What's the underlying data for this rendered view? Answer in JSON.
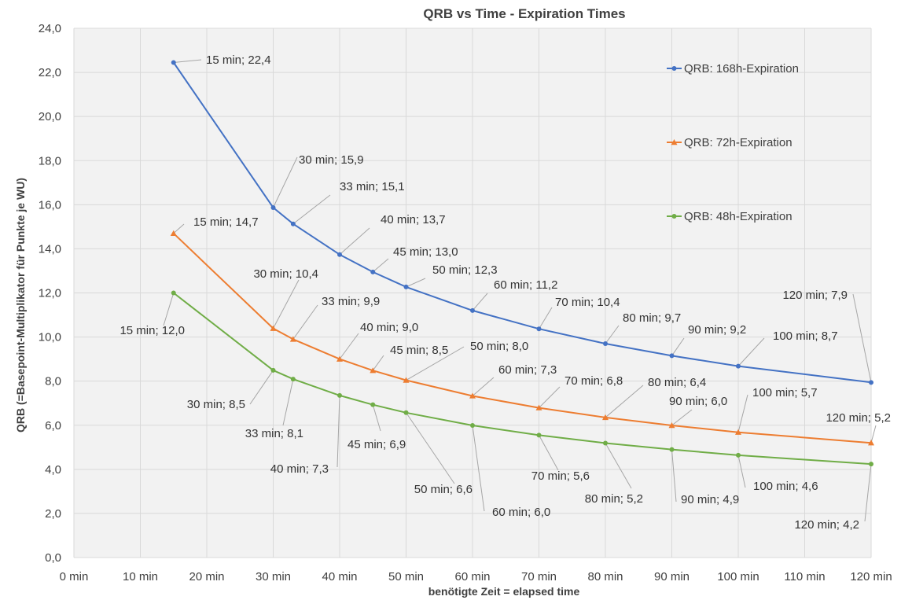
{
  "chart_data": {
    "type": "line",
    "title": "QRB vs Time - Expiration Times",
    "xlabel": "benötigte Zeit = elapsed time",
    "ylabel": "QRB (=Basepoint-Multiplikator für Punkte je WU)",
    "xlim": [
      0,
      120
    ],
    "ylim": [
      0,
      24
    ],
    "grid": true,
    "legend_position": "right",
    "x_ticks": [
      "0 min",
      "10 min",
      "20 min",
      "30 min",
      "40 min",
      "50 min",
      "60 min",
      "70 min",
      "80 min",
      "90 min",
      "100 min",
      "110 min",
      "120 min"
    ],
    "y_ticks": [
      "0,0",
      "2,0",
      "4,0",
      "6,0",
      "8,0",
      "10,0",
      "12,0",
      "14,0",
      "16,0",
      "18,0",
      "20,0",
      "22,0",
      "24,0"
    ],
    "x": [
      15,
      30,
      33,
      40,
      45,
      50,
      60,
      70,
      80,
      90,
      100,
      120
    ],
    "series": [
      {
        "name": "QRB: 168h-Expiration",
        "color": "#4472c4",
        "marker": "circle",
        "values": [
          22.45,
          15.87,
          15.13,
          13.74,
          12.95,
          12.27,
          11.2,
          10.37,
          9.7,
          9.15,
          8.68,
          7.94
        ],
        "labels": [
          "15 min; 22,4",
          "30 min; 15,9",
          "33 min; 15,1",
          "40 min; 13,7",
          "45 min; 13,0",
          "50 min; 12,3",
          "60 min; 11,2",
          "70 min; 10,4",
          "80 min; 9,7",
          "90 min; 9,2",
          "100 min; 8,7",
          "120 min; 7,9"
        ]
      },
      {
        "name": "QRB: 72h-Expiration",
        "color": "#ed7d31",
        "marker": "triangle",
        "values": [
          14.7,
          10.39,
          9.9,
          9.0,
          8.48,
          8.04,
          7.33,
          6.79,
          6.35,
          5.99,
          5.68,
          5.2
        ],
        "labels": [
          "15 min; 14,7",
          "30 min; 10,4",
          "33 min; 9,9",
          "40 min; 9,0",
          "45 min; 8,5",
          "50 min; 8,0",
          "60 min; 7,3",
          "70 min; 6,8",
          "80 min; 6,4",
          "90 min; 6,0",
          "100 min; 5,7",
          "120 min; 5,2"
        ]
      },
      {
        "name": "QRB: 48h-Expiration",
        "color": "#70ad47",
        "marker": "circle",
        "values": [
          12.0,
          8.49,
          8.09,
          7.35,
          6.93,
          6.57,
          5.99,
          5.55,
          5.19,
          4.9,
          4.64,
          4.24
        ],
        "labels": [
          "15 min; 12,0",
          "30 min; 8,5",
          "33 min; 8,1",
          "40 min; 7,3",
          "45 min; 6,9",
          "50 min; 6,6",
          "60 min; 6,0",
          "70 min; 5,6",
          "80 min; 5,2",
          "90 min; 4,9",
          "100 min; 4,6",
          "120 min; 4,2"
        ]
      }
    ]
  }
}
